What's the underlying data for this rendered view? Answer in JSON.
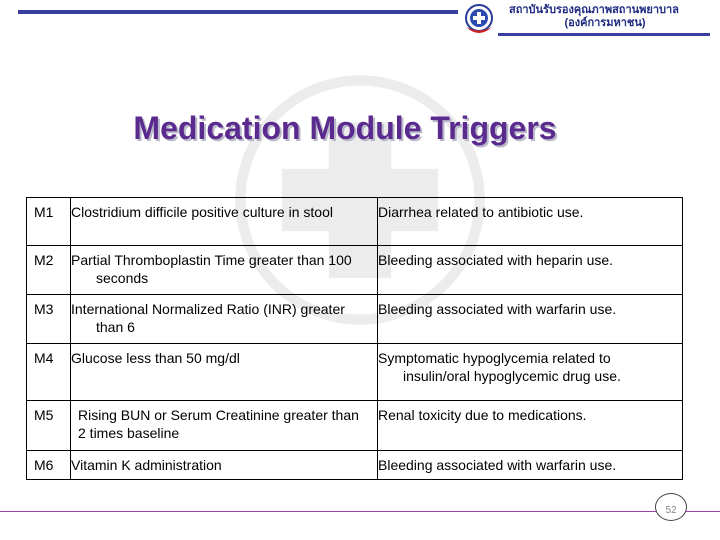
{
  "header": {
    "org_name_line1": "สถาบันรับรองคุณภาพสถานพยาบาล",
    "org_name_line2": "(องค์การมหาชน)",
    "logo_icon": "red-cross-circle-logo"
  },
  "title": "Medication Module Triggers",
  "table": {
    "rows": [
      {
        "id": "M1",
        "trigger": "Clostridium difficile positive culture in stool",
        "event": "Diarrhea related to antibiotic use."
      },
      {
        "id": "M2",
        "trigger": "Partial Thromboplastin Time greater than 100 seconds",
        "event": "Bleeding associated with heparin use."
      },
      {
        "id": "M3",
        "trigger": "International Normalized Ratio (INR) greater than 6",
        "event": "Bleeding associated with warfarin use."
      },
      {
        "id": "M4",
        "trigger": "Glucose less than 50 mg/dl",
        "event": "Symptomatic hypoglycemia related to insulin/oral hypoglycemic drug use."
      },
      {
        "id": "M5",
        "trigger": "Rising BUN or Serum Creatinine greater than 2 times baseline",
        "event": "Renal toxicity due to medications."
      },
      {
        "id": "M6",
        "trigger": "Vitamin K administration",
        "event": "Bleeding associated with warfarin use."
      }
    ]
  },
  "page_number": "52",
  "colors": {
    "title": "#5b2a8e",
    "header_bar": "#3a3ea0",
    "footer_line": "#a040b0"
  }
}
